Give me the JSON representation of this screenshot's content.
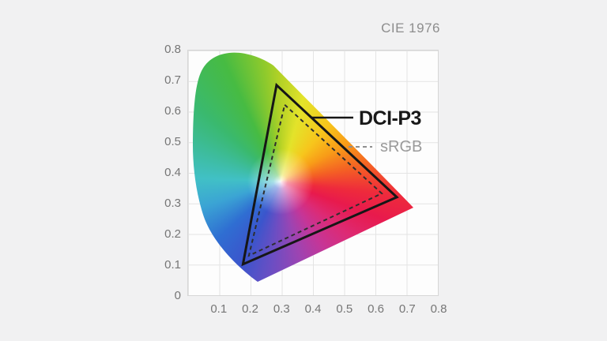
{
  "figure": {
    "title": "CIE 1976",
    "background_color": "#f1f1f2",
    "plot_background_color": "#fdfdfd",
    "grid_color": "#e4e4e4"
  },
  "axes": {
    "x_ticks": [
      "0.1",
      "0.2",
      "0.3",
      "0.4",
      "0.5",
      "0.6",
      "0.7",
      "0.8"
    ],
    "y_ticks": [
      "0",
      "0.1",
      "0.2",
      "0.3",
      "0.4",
      "0.5",
      "0.6",
      "0.7",
      "0.8"
    ],
    "x_range": [
      0,
      0.8
    ],
    "y_range": [
      0,
      0.8
    ]
  },
  "legend": {
    "dci_p3_label": "DCI-P3",
    "srgb_label": "sRGB"
  },
  "chart_data": {
    "type": "area",
    "subtype": "chromaticity-gamut-diagram",
    "title": "CIE 1976",
    "xlabel": "",
    "ylabel": "",
    "xlim": [
      0,
      0.8
    ],
    "ylim": [
      0,
      0.8
    ],
    "grid": true,
    "white_point": [
      0.297,
      0.372
    ],
    "series": [
      {
        "name": "DCI-P3",
        "line_style": "solid",
        "color": "#161616",
        "vertices": [
          [
            0.284,
            0.685
          ],
          [
            0.667,
            0.321
          ],
          [
            0.177,
            0.103
          ]
        ]
      },
      {
        "name": "sRGB",
        "line_style": "dashed",
        "color": "#2e2e2e",
        "vertices": [
          [
            0.31,
            0.621
          ],
          [
            0.619,
            0.333
          ],
          [
            0.196,
            0.131
          ]
        ]
      }
    ],
    "spectral_locus_colors": {
      "green": "#47bb42",
      "yellow": "#e3e32a",
      "orange": "#f89c18",
      "red": "#e81a4d",
      "magenta": "#c63597",
      "violet": "#6b4ec3",
      "blue": "#3b55cc",
      "cyan": "#41c0c6"
    }
  }
}
